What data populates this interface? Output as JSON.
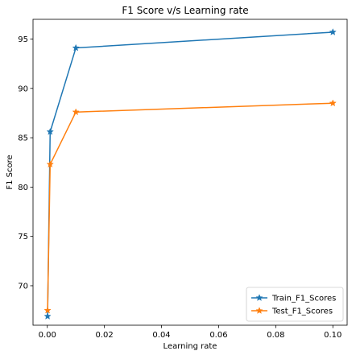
{
  "chart_data": {
    "type": "line",
    "title": "F1 Score v/s Learning rate",
    "xlabel": "Learning rate",
    "ylabel": "F1 Score",
    "xlim": [
      -0.005,
      0.105
    ],
    "ylim": [
      66.0,
      97.0
    ],
    "xticks": [
      0.0,
      0.02,
      0.04,
      0.06,
      0.08,
      0.1
    ],
    "xtick_labels": [
      "0.00",
      "0.02",
      "0.04",
      "0.06",
      "0.08",
      "0.10"
    ],
    "yticks": [
      70,
      75,
      80,
      85,
      90,
      95
    ],
    "ytick_labels": [
      "70",
      "75",
      "80",
      "85",
      "90",
      "95"
    ],
    "grid": false,
    "legend_position": "lower-right",
    "marker": "star",
    "series": [
      {
        "name": "Train_F1_Scores",
        "color": "#1f77b4",
        "x": [
          0.0001,
          0.001,
          0.01,
          0.1
        ],
        "y": [
          66.9,
          85.6,
          94.1,
          95.7
        ]
      },
      {
        "name": "Test_F1_Scores",
        "color": "#ff7f0e",
        "x": [
          0.0001,
          0.001,
          0.01,
          0.1
        ],
        "y": [
          67.5,
          82.3,
          87.6,
          88.5
        ]
      }
    ]
  }
}
